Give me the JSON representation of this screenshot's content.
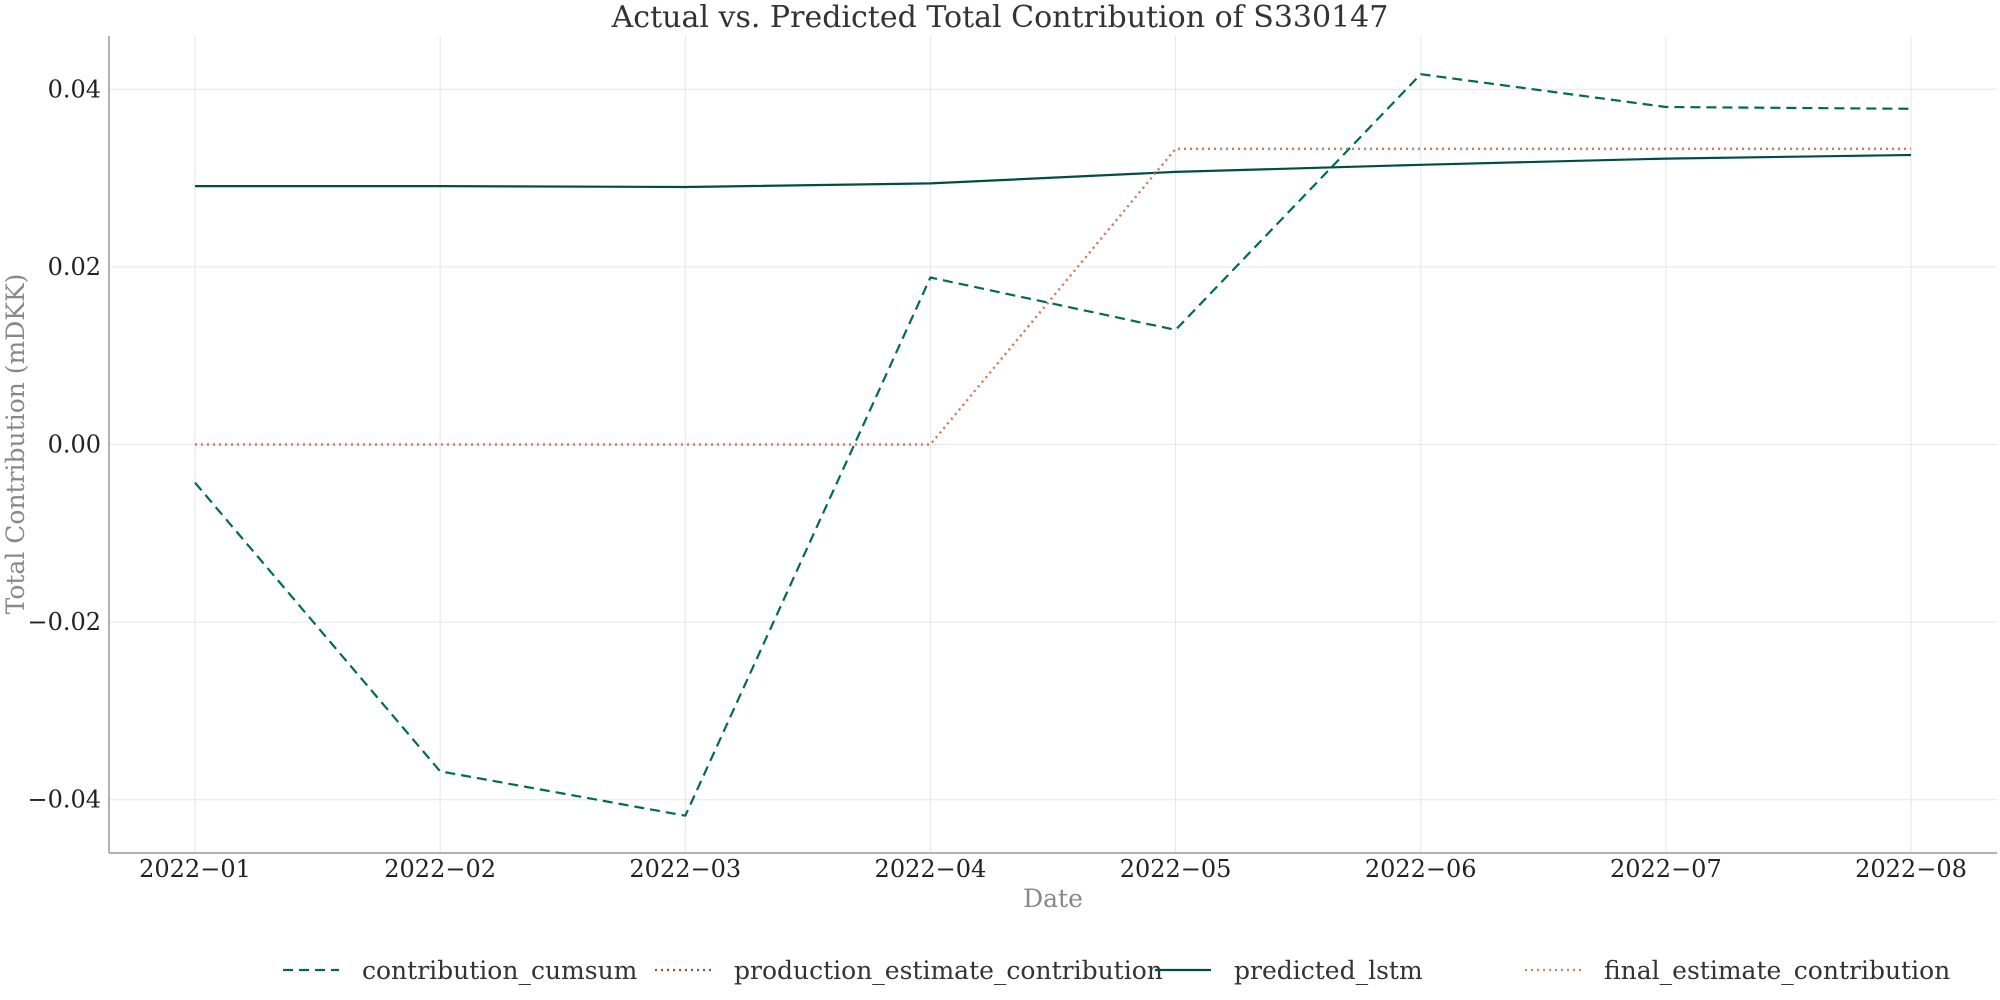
{
  "chart_data": {
    "type": "line",
    "title": "Actual vs. Predicted Total Contribution of S330147",
    "xlabel": "Date",
    "ylabel": "Total Contribution (mDKK)",
    "x": [
      "2022−01",
      "2022−02",
      "2022−03",
      "2022−04",
      "2022−05",
      "2022−06",
      "2022−07",
      "2022−08"
    ],
    "ylim": [
      -0.046,
      0.046
    ],
    "yticks": [
      0.04,
      0.02,
      0.0,
      -0.02,
      -0.04
    ],
    "ytick_labels": [
      "0.04",
      "0.02",
      "0.00",
      "−0.02",
      "−0.04"
    ],
    "grid": true,
    "legend_position": "bottom-center",
    "series": [
      {
        "name": "contribution_cumsum",
        "values": [
          -0.0043,
          -0.0368,
          -0.0418,
          0.0188,
          0.0129,
          0.0417,
          0.038,
          0.0378
        ],
        "color": "#00695c",
        "style": "dashed"
      },
      {
        "name": "production_estimate_contribution",
        "values": [
          0.0,
          0.0,
          0.0,
          0.0,
          0.0333,
          0.0333,
          0.0333,
          0.0333
        ],
        "color": "#a04a30",
        "style": "dotted"
      },
      {
        "name": "predicted_lstm",
        "values": [
          0.0291,
          0.0291,
          0.029,
          0.0294,
          0.0307,
          0.0315,
          0.0322,
          0.0326
        ],
        "color": "#004d47",
        "style": "solid"
      },
      {
        "name": "final_estimate_contribution",
        "values": [
          0.0,
          0.0,
          0.0,
          0.0,
          0.0333,
          0.0333,
          0.0333,
          0.0333
        ],
        "color": "#d08060",
        "style": "dotted"
      }
    ]
  }
}
